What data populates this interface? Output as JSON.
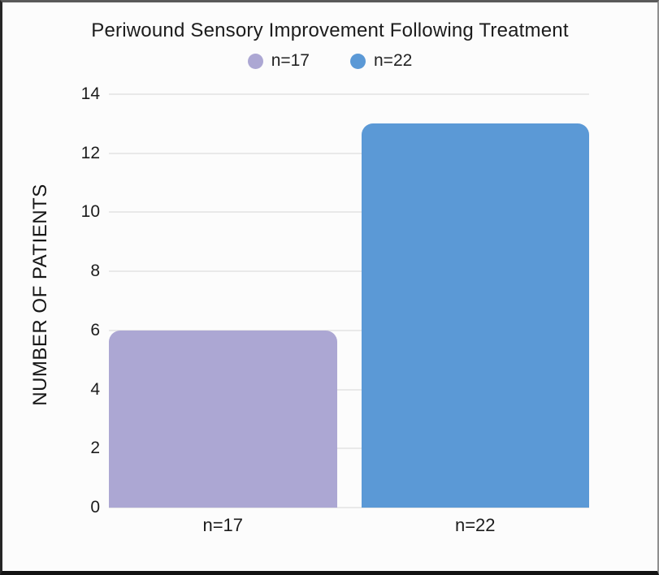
{
  "chart_data": {
    "type": "bar",
    "title": "Periwound Sensory Improvement Following Treatment",
    "ylabel": "NUMBER OF PATIENTS",
    "xlabel": "",
    "categories": [
      "n=17",
      "n=22"
    ],
    "values": [
      6,
      13
    ],
    "bar_colors": [
      "#aca7d3",
      "#5b99d6"
    ],
    "legend": [
      {
        "label": "n=17",
        "color": "#aca7d3"
      },
      {
        "label": "n=22",
        "color": "#5b99d6"
      }
    ],
    "legend_position": "top",
    "ylim": [
      0,
      14
    ],
    "yticks": [
      0,
      2,
      4,
      6,
      8,
      10,
      12,
      14
    ],
    "grid": true,
    "grid_color": "#e9e9e9",
    "text_color": "#1c1c1c",
    "background": "#fcfcfc"
  }
}
